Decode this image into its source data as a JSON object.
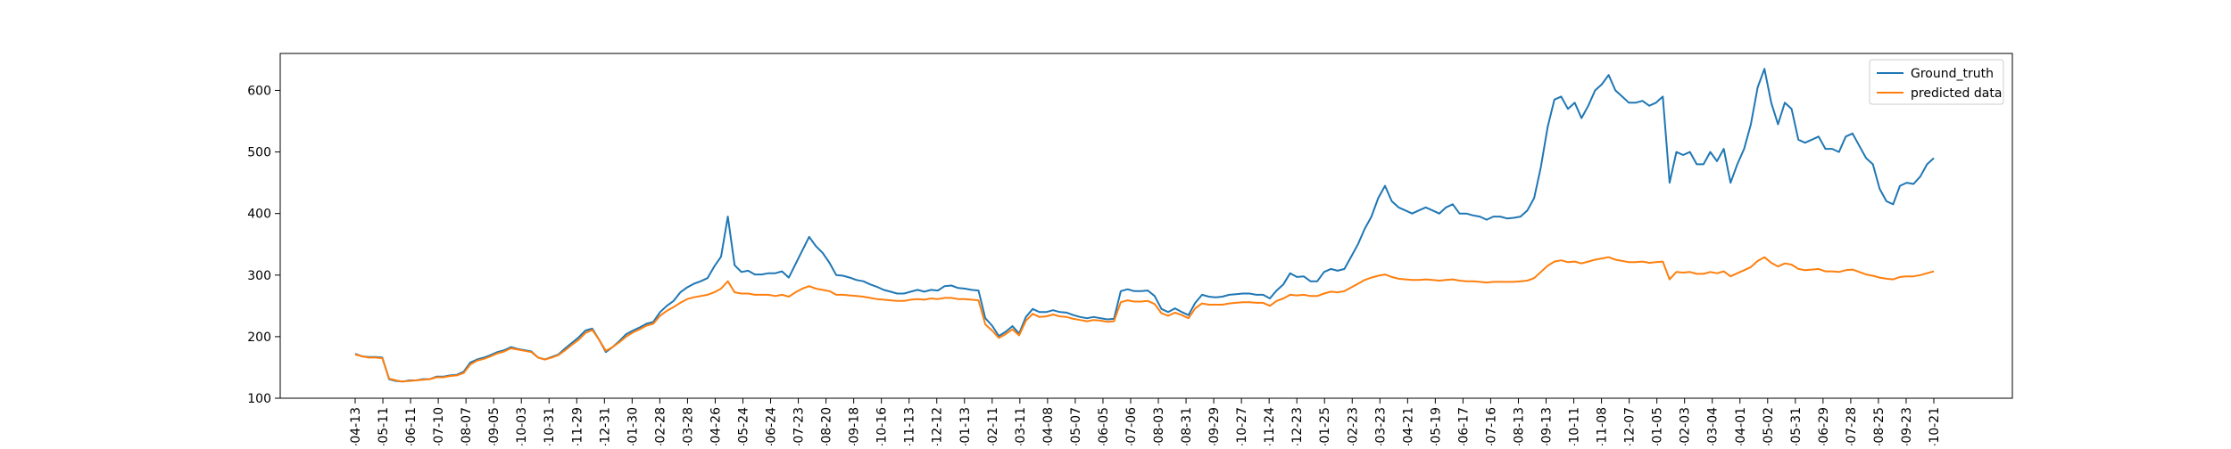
{
  "chart_data": {
    "type": "line",
    "title": "",
    "xlabel": "",
    "ylabel": "",
    "ylim": [
      100,
      660
    ],
    "y_ticks": [
      100,
      200,
      300,
      400,
      500,
      600
    ],
    "x_tick_labels": [
      "-04-13",
      "-05-11",
      "-06-11",
      "-07-10",
      "-08-07",
      "-09-05",
      "-10-03",
      "-10-31",
      "-11-29",
      "-12-31",
      "-01-30",
      "-02-28",
      "-03-28",
      "-04-26",
      "-05-24",
      "-06-24",
      "-07-23",
      "-08-20",
      "-09-18",
      "-10-16",
      "-11-13",
      "-12-12",
      "-01-13",
      "-02-11",
      "-03-11",
      "-04-08",
      "-05-07",
      "-06-05",
      "-07-06",
      "-08-03",
      "-08-31",
      "-09-29",
      "-10-27",
      "-11-24",
      "-12-23",
      "-01-25",
      "-02-23",
      "-03-23",
      "-04-21",
      "-05-19",
      "-06-17",
      "-07-16",
      "-08-13",
      "-09-13",
      "-10-11",
      "-11-08",
      "-12-07",
      "-01-05",
      "-02-03",
      "-03-04",
      "-04-01",
      "-05-02",
      "-05-31",
      "-06-29",
      "-07-28",
      "-08-25",
      "-09-23",
      "-10-21"
    ],
    "grid": false,
    "legend_position": "upper-right",
    "series": [
      {
        "name": "Ground_truth",
        "color": "#1f77b4",
        "values": [
          172,
          168,
          167,
          167,
          166,
          131,
          128,
          127,
          129,
          129,
          131,
          131,
          135,
          135,
          137,
          138,
          143,
          158,
          163,
          166,
          170,
          175,
          178,
          183,
          180,
          178,
          176,
          166,
          163,
          167,
          171,
          181,
          190,
          199,
          210,
          213,
          195,
          175,
          183,
          193,
          204,
          210,
          215,
          221,
          224,
          240,
          250,
          258,
          272,
          280,
          286,
          290,
          295,
          314,
          330,
          395,
          316,
          305,
          307,
          301,
          301,
          303,
          303,
          306,
          296,
          318,
          340,
          362,
          347,
          336,
          320,
          300,
          299,
          296,
          292,
          290,
          285,
          281,
          276,
          273,
          270,
          270,
          273,
          276,
          273,
          276,
          275,
          282,
          283,
          279,
          278,
          276,
          275,
          230,
          218,
          201,
          208,
          217,
          205,
          232,
          245,
          240,
          240,
          243,
          240,
          239,
          235,
          232,
          230,
          232,
          230,
          228,
          229,
          274,
          277,
          274,
          274,
          275,
          266,
          245,
          240,
          246,
          240,
          235,
          255,
          268,
          265,
          264,
          265,
          268,
          269,
          270,
          270,
          268,
          268,
          262,
          275,
          285,
          303,
          297,
          298,
          290,
          290,
          305,
          310,
          307,
          310,
          330,
          350,
          375,
          395,
          425,
          445,
          420,
          410,
          405,
          400,
          405,
          410,
          405,
          400,
          410,
          415,
          400,
          400,
          397,
          395,
          390,
          395,
          395,
          392,
          393,
          395,
          405,
          425,
          475,
          540,
          585,
          590,
          570,
          580,
          555,
          575,
          600,
          610,
          625,
          600,
          590,
          580,
          580,
          583,
          575,
          580,
          590,
          450,
          500,
          495,
          500,
          480,
          480,
          500,
          485,
          505,
          450,
          480,
          505,
          545,
          605,
          635,
          580,
          545,
          580,
          570,
          520,
          515,
          520,
          525,
          505,
          505,
          500,
          525,
          530,
          510,
          490,
          480,
          440,
          420,
          415,
          445,
          450,
          448,
          460,
          480,
          490
        ]
      },
      {
        "name": "predicted data",
        "color": "#ff7f0e",
        "values": [
          171,
          168,
          166,
          166,
          165,
          132,
          129,
          127,
          128,
          129,
          130,
          131,
          134,
          134,
          136,
          137,
          141,
          155,
          161,
          164,
          168,
          173,
          176,
          181,
          179,
          177,
          175,
          166,
          163,
          166,
          170,
          178,
          187,
          195,
          206,
          211,
          195,
          177,
          183,
          191,
          200,
          207,
          212,
          218,
          221,
          234,
          242,
          248,
          255,
          261,
          264,
          266,
          268,
          272,
          278,
          290,
          272,
          270,
          270,
          268,
          268,
          268,
          266,
          268,
          265,
          272,
          278,
          282,
          278,
          276,
          274,
          268,
          268,
          267,
          266,
          265,
          263,
          261,
          260,
          259,
          258,
          258,
          260,
          261,
          260,
          262,
          261,
          263,
          263,
          261,
          261,
          260,
          259,
          220,
          210,
          198,
          204,
          212,
          202,
          226,
          237,
          232,
          233,
          236,
          233,
          232,
          229,
          227,
          225,
          227,
          226,
          224,
          225,
          256,
          259,
          257,
          257,
          258,
          253,
          238,
          234,
          239,
          235,
          230,
          246,
          254,
          252,
          252,
          252,
          254,
          255,
          256,
          256,
          255,
          255,
          250,
          258,
          262,
          268,
          267,
          268,
          266,
          266,
          270,
          273,
          272,
          274,
          280,
          286,
          292,
          296,
          299,
          301,
          297,
          294,
          293,
          292,
          292,
          293,
          292,
          291,
          292,
          293,
          291,
          290,
          290,
          289,
          288,
          289,
          289,
          289,
          289,
          290,
          291,
          295,
          305,
          315,
          322,
          324,
          321,
          322,
          319,
          322,
          325,
          327,
          329,
          325,
          323,
          321,
          321,
          322,
          320,
          321,
          322,
          293,
          305,
          304,
          305,
          302,
          302,
          305,
          303,
          306,
          298,
          303,
          308,
          313,
          323,
          329,
          320,
          314,
          319,
          317,
          310,
          308,
          309,
          310,
          306,
          306,
          305,
          308,
          309,
          305,
          301,
          299,
          296,
          294,
          293,
          297,
          298,
          298,
          300,
          303,
          306
        ]
      }
    ]
  }
}
